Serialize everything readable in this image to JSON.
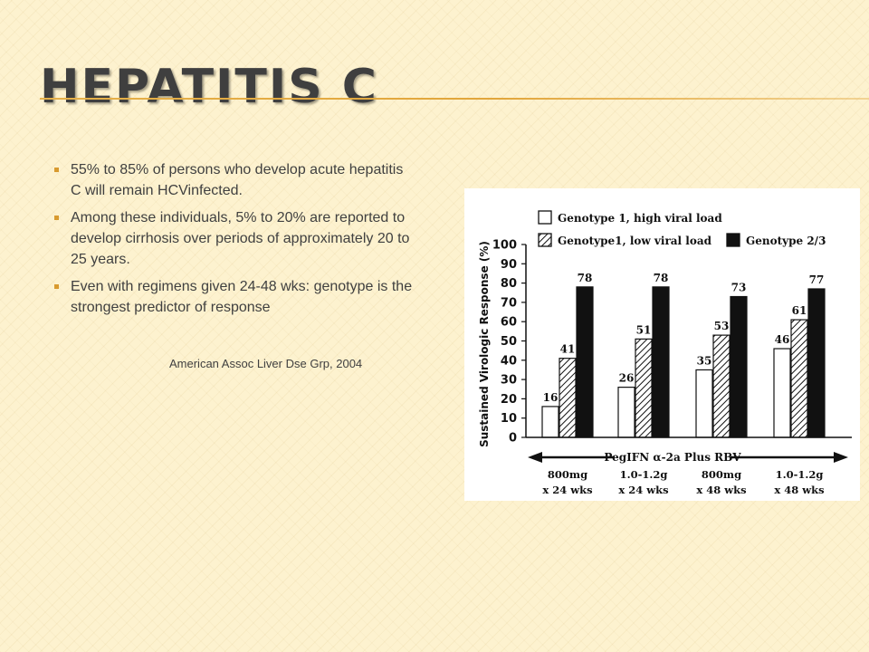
{
  "slide": {
    "title": "HEPATITIS C",
    "bullets": [
      "55% to 85% of persons who develop acute hepatitis C will remain HCVinfected.",
      "Among these individuals, 5% to 20% are reported to develop cirrhosis over periods of approximately 20 to 25 years.",
      "Even with regimens given 24-48 wks: genotype is the strongest predictor of response"
    ],
    "citation": "American Assoc Liver Dse Grp, 2004"
  },
  "colors": {
    "accent": "#e2a63b",
    "title": "#3f3f3f",
    "text": "#404040"
  },
  "chart_data": {
    "type": "bar",
    "ylabel": "Sustained Virologic Response (%)",
    "ylim": [
      0,
      100
    ],
    "yticks": [
      "0",
      "10",
      "20",
      "30",
      "40",
      "50",
      "60",
      "70",
      "80",
      "90",
      "100"
    ],
    "treatment_label": "PegIFN α-2a Plus RBV",
    "categories": [
      [
        "800mg",
        "x 24 wks"
      ],
      [
        "1.0-1.2g",
        "x 24 wks"
      ],
      [
        "800mg",
        "x 48 wks"
      ],
      [
        "1.0-1.2g",
        "x 48 wks"
      ]
    ],
    "series": [
      {
        "name": "Genotype 1, high viral load",
        "style": "white",
        "values": [
          16,
          26,
          35,
          46
        ]
      },
      {
        "name": "Genotype1, low viral load",
        "style": "hatched",
        "values": [
          41,
          51,
          53,
          61
        ]
      },
      {
        "name": "Genotype 2/3",
        "style": "black",
        "values": [
          78,
          78,
          73,
          77
        ]
      }
    ],
    "legend_position": "top"
  }
}
